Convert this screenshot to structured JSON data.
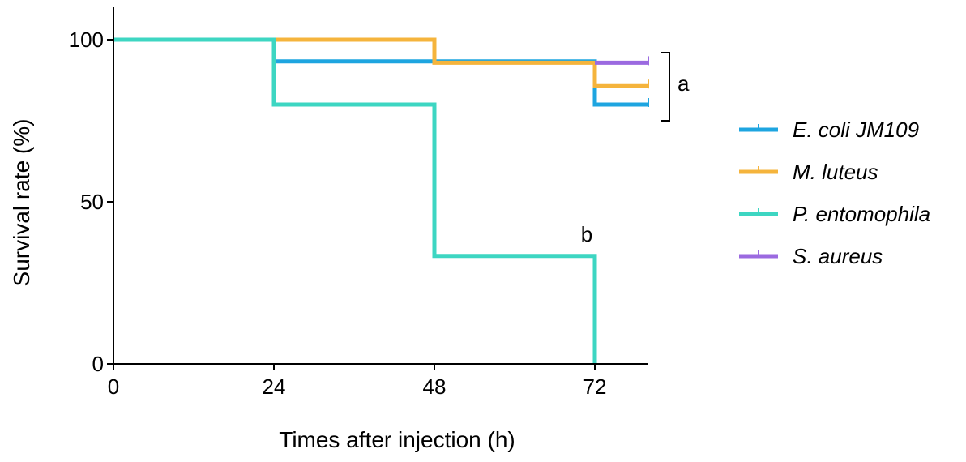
{
  "chart_data": {
    "type": "line",
    "subtype": "kaplan-meier step",
    "title": "",
    "xlabel": "Times after injection (h)",
    "ylabel": "Survival rate (%)",
    "xlim": [
      0,
      80
    ],
    "ylim": [
      0,
      110
    ],
    "xticks": [
      0,
      24,
      48,
      72
    ],
    "yticks": [
      0,
      50,
      100
    ],
    "grid": false,
    "legend_position": "right",
    "series": [
      {
        "name": "E. coli JM109",
        "color": "#1ea5e0",
        "x": [
          0,
          24,
          24,
          72,
          72,
          80
        ],
        "y": [
          100,
          100,
          93.3,
          93.3,
          80,
          80
        ]
      },
      {
        "name": "M. luteus",
        "color": "#f5b43c",
        "x": [
          0,
          48,
          48,
          72,
          72,
          80
        ],
        "y": [
          100,
          100,
          92.9,
          92.9,
          85.7,
          85.7
        ]
      },
      {
        "name": "P. entomophila",
        "color": "#3dd6c2",
        "x": [
          0,
          24,
          24,
          48,
          48,
          72,
          72
        ],
        "y": [
          100,
          100,
          80,
          80,
          33.3,
          33.3,
          0
        ]
      },
      {
        "name": "S. aureus",
        "color": "#9b6ae0",
        "x": [
          72,
          80
        ],
        "y": [
          92.9,
          92.9
        ]
      }
    ],
    "annotations": [
      {
        "text": "a",
        "x": 80,
        "y": 86.5,
        "bracket_y": [
          96,
          75
        ]
      },
      {
        "text": "b",
        "x": 71,
        "y": 40
      }
    ]
  }
}
